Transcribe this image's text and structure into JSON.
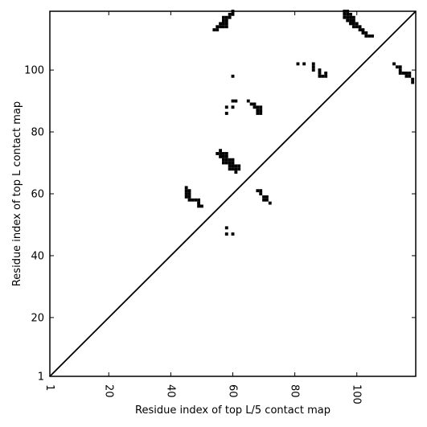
{
  "chart_data": {
    "type": "scatter",
    "title": "",
    "xlabel": "Residue index of top L/5 contact map",
    "ylabel": "Residue index of top L contact map",
    "xlim": [
      1,
      119
    ],
    "ylim": [
      1,
      119
    ],
    "x_ticks": [
      1,
      20,
      40,
      60,
      80,
      100
    ],
    "y_ticks": [
      1,
      20,
      40,
      60,
      80,
      100
    ],
    "x_tick_labels": [
      "1",
      "20",
      "40",
      "60",
      "80",
      "100"
    ],
    "y_tick_labels": [
      "1",
      "20",
      "40",
      "60",
      "80",
      "100"
    ],
    "diagonal": true,
    "grid": false,
    "marker_color": "#000000",
    "points": [
      [
        54,
        113
      ],
      [
        55,
        113
      ],
      [
        55,
        114
      ],
      [
        56,
        114
      ],
      [
        56,
        115
      ],
      [
        57,
        114
      ],
      [
        57,
        115
      ],
      [
        57,
        116
      ],
      [
        57,
        117
      ],
      [
        58,
        114
      ],
      [
        58,
        115
      ],
      [
        58,
        116
      ],
      [
        58,
        117
      ],
      [
        59,
        117
      ],
      [
        59,
        118
      ],
      [
        60,
        118
      ],
      [
        60,
        119
      ],
      [
        96,
        117
      ],
      [
        96,
        118
      ],
      [
        96,
        119
      ],
      [
        97,
        116
      ],
      [
        97,
        117
      ],
      [
        97,
        118
      ],
      [
        97,
        119
      ],
      [
        98,
        115
      ],
      [
        98,
        116
      ],
      [
        98,
        117
      ],
      [
        98,
        118
      ],
      [
        99,
        114
      ],
      [
        99,
        115
      ],
      [
        99,
        116
      ],
      [
        99,
        117
      ],
      [
        100,
        114
      ],
      [
        100,
        115
      ],
      [
        101,
        113
      ],
      [
        101,
        114
      ],
      [
        102,
        112
      ],
      [
        102,
        113
      ],
      [
        103,
        111
      ],
      [
        103,
        112
      ],
      [
        104,
        111
      ],
      [
        105,
        111
      ],
      [
        81,
        102
      ],
      [
        83,
        102
      ],
      [
        86,
        100
      ],
      [
        86,
        101
      ],
      [
        86,
        102
      ],
      [
        88,
        98
      ],
      [
        88,
        99
      ],
      [
        88,
        100
      ],
      [
        89,
        98
      ],
      [
        90,
        98
      ],
      [
        90,
        99
      ],
      [
        112,
        102
      ],
      [
        113,
        101
      ],
      [
        114,
        99
      ],
      [
        114,
        100
      ],
      [
        114,
        101
      ],
      [
        115,
        99
      ],
      [
        116,
        98
      ],
      [
        116,
        99
      ],
      [
        117,
        98
      ],
      [
        117,
        99
      ],
      [
        118,
        96
      ],
      [
        118,
        97
      ],
      [
        60,
        98
      ],
      [
        65,
        90
      ],
      [
        66,
        89
      ],
      [
        67,
        88
      ],
      [
        67,
        89
      ],
      [
        68,
        87
      ],
      [
        68,
        88
      ],
      [
        69,
        86
      ],
      [
        69,
        87
      ],
      [
        69,
        88
      ],
      [
        68,
        86
      ],
      [
        60,
        90
      ],
      [
        61,
        90
      ],
      [
        58,
        88
      ],
      [
        60,
        88
      ],
      [
        58,
        86
      ],
      [
        55,
        73
      ],
      [
        56,
        72
      ],
      [
        56,
        73
      ],
      [
        56,
        74
      ],
      [
        57,
        70
      ],
      [
        57,
        71
      ],
      [
        57,
        72
      ],
      [
        57,
        73
      ],
      [
        58,
        70
      ],
      [
        58,
        71
      ],
      [
        58,
        72
      ],
      [
        58,
        73
      ],
      [
        59,
        68
      ],
      [
        59,
        69
      ],
      [
        59,
        70
      ],
      [
        59,
        71
      ],
      [
        60,
        68
      ],
      [
        60,
        69
      ],
      [
        60,
        70
      ],
      [
        60,
        71
      ],
      [
        61,
        67
      ],
      [
        61,
        68
      ],
      [
        61,
        69
      ],
      [
        62,
        68
      ],
      [
        62,
        69
      ],
      [
        45,
        59
      ],
      [
        45,
        60
      ],
      [
        45,
        61
      ],
      [
        45,
        62
      ],
      [
        46,
        58
      ],
      [
        46,
        59
      ],
      [
        46,
        60
      ],
      [
        46,
        61
      ],
      [
        47,
        58
      ],
      [
        48,
        58
      ],
      [
        49,
        56
      ],
      [
        49,
        57
      ],
      [
        49,
        58
      ],
      [
        50,
        56
      ],
      [
        68,
        61
      ],
      [
        69,
        61
      ],
      [
        69,
        60
      ],
      [
        70,
        58
      ],
      [
        70,
        59
      ],
      [
        71,
        58
      ],
      [
        71,
        59
      ],
      [
        72,
        57
      ],
      [
        58,
        49
      ],
      [
        58,
        47
      ],
      [
        60,
        47
      ]
    ]
  }
}
